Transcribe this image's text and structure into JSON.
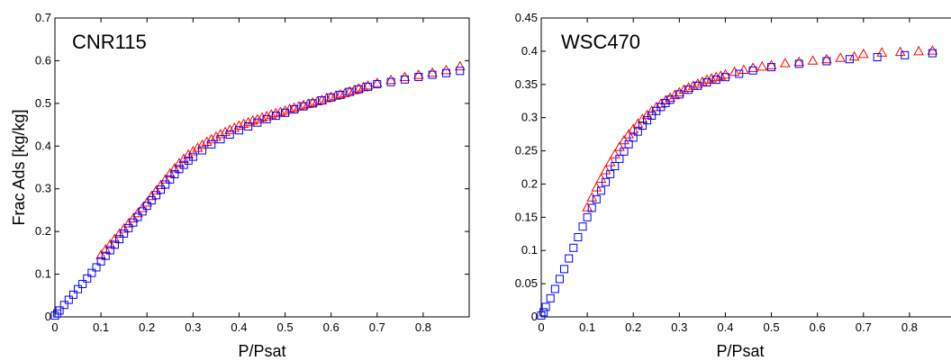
{
  "colors": {
    "series_a": "#ff0000",
    "series_b": "#0000ff",
    "axis": "#000000",
    "background": "#ffffff"
  },
  "chart_data": [
    {
      "type": "scatter",
      "title": "CNR115",
      "xlabel": "P/Psat",
      "ylabel": "Frac Ads [kg/kg]",
      "xlim": [
        0,
        0.9
      ],
      "ylim": [
        0,
        0.7
      ],
      "xticks": [
        0,
        0.1,
        0.2,
        0.3,
        0.4,
        0.5,
        0.6,
        0.7,
        0.8
      ],
      "xtick_labels": [
        "0",
        "0.1",
        "0.2",
        "0.3",
        "0.4",
        "0.5",
        "0.6",
        "0.7",
        "0.8"
      ],
      "yticks": [
        0,
        0.1,
        0.2,
        0.3,
        0.4,
        0.5,
        0.6,
        0.7
      ],
      "ytick_labels": [
        "0",
        "0.1",
        "0.2",
        "0.3",
        "0.4",
        "0.5",
        "0.6",
        "0.7"
      ],
      "grid": false,
      "series": [
        {
          "marker": "triangle",
          "color": "#ff0000",
          "x": [
            0.1,
            0.11,
            0.12,
            0.13,
            0.14,
            0.15,
            0.16,
            0.17,
            0.18,
            0.19,
            0.2,
            0.21,
            0.22,
            0.23,
            0.24,
            0.25,
            0.26,
            0.27,
            0.28,
            0.29,
            0.3,
            0.31,
            0.32,
            0.33,
            0.34,
            0.35,
            0.36,
            0.37,
            0.38,
            0.39,
            0.4,
            0.41,
            0.42,
            0.43,
            0.44,
            0.45,
            0.46,
            0.47,
            0.48,
            0.49,
            0.5,
            0.51,
            0.52,
            0.53,
            0.54,
            0.55,
            0.56,
            0.57,
            0.58,
            0.59,
            0.6,
            0.61,
            0.62,
            0.63,
            0.64,
            0.65,
            0.66,
            0.67,
            0.68,
            0.7,
            0.73,
            0.76,
            0.79,
            0.82,
            0.85,
            0.88
          ],
          "y": [
            0.145,
            0.158,
            0.17,
            0.183,
            0.195,
            0.207,
            0.219,
            0.231,
            0.243,
            0.255,
            0.268,
            0.283,
            0.296,
            0.309,
            0.322,
            0.336,
            0.348,
            0.36,
            0.37,
            0.38,
            0.388,
            0.396,
            0.403,
            0.41,
            0.416,
            0.422,
            0.428,
            0.433,
            0.438,
            0.443,
            0.448,
            0.452,
            0.456,
            0.46,
            0.463,
            0.467,
            0.47,
            0.474,
            0.477,
            0.48,
            0.483,
            0.487,
            0.49,
            0.493,
            0.496,
            0.499,
            0.502,
            0.505,
            0.508,
            0.512,
            0.515,
            0.518,
            0.521,
            0.524,
            0.528,
            0.531,
            0.535,
            0.538,
            0.542,
            0.548,
            0.555,
            0.562,
            0.567,
            0.572,
            0.578,
            0.587
          ]
        },
        {
          "marker": "square",
          "color": "#0000ff",
          "x": [
            0.0,
            0.005,
            0.01,
            0.02,
            0.03,
            0.04,
            0.05,
            0.06,
            0.07,
            0.08,
            0.09,
            0.1,
            0.11,
            0.12,
            0.13,
            0.14,
            0.15,
            0.16,
            0.17,
            0.18,
            0.19,
            0.2,
            0.21,
            0.22,
            0.23,
            0.24,
            0.25,
            0.26,
            0.27,
            0.28,
            0.29,
            0.3,
            0.32,
            0.34,
            0.36,
            0.38,
            0.4,
            0.42,
            0.44,
            0.46,
            0.48,
            0.5,
            0.52,
            0.54,
            0.56,
            0.58,
            0.6,
            0.62,
            0.64,
            0.66,
            0.68,
            0.7,
            0.73,
            0.76,
            0.79,
            0.82,
            0.85,
            0.88
          ],
          "y": [
            0.003,
            0.008,
            0.015,
            0.028,
            0.04,
            0.052,
            0.065,
            0.077,
            0.09,
            0.103,
            0.116,
            0.13,
            0.143,
            0.156,
            0.169,
            0.182,
            0.195,
            0.208,
            0.221,
            0.234,
            0.247,
            0.26,
            0.273,
            0.285,
            0.298,
            0.31,
            0.322,
            0.334,
            0.346,
            0.356,
            0.366,
            0.375,
            0.39,
            0.404,
            0.416,
            0.427,
            0.437,
            0.446,
            0.455,
            0.463,
            0.471,
            0.478,
            0.486,
            0.493,
            0.5,
            0.507,
            0.514,
            0.52,
            0.527,
            0.533,
            0.539,
            0.545,
            0.55,
            0.556,
            0.562,
            0.567,
            0.571,
            0.576
          ]
        }
      ]
    },
    {
      "type": "scatter",
      "title": "WSC470",
      "xlabel": "P/Psat",
      "ylabel": "",
      "xlim": [
        0,
        0.9
      ],
      "ylim": [
        0,
        0.45
      ],
      "xticks": [
        0,
        0.1,
        0.2,
        0.3,
        0.4,
        0.5,
        0.6,
        0.7,
        0.8
      ],
      "xtick_labels": [
        "0",
        "0.1",
        "0.2",
        "0.3",
        "0.4",
        "0.5",
        "0.6",
        "0.7",
        "0.8"
      ],
      "yticks": [
        0,
        0.05,
        0.1,
        0.15,
        0.2,
        0.25,
        0.3,
        0.35,
        0.4,
        0.45
      ],
      "ytick_labels": [
        "0",
        "0.05",
        "0.1",
        "0.15",
        "0.2",
        "0.25",
        "0.3",
        "0.35",
        "0.4",
        "0.45"
      ],
      "grid": false,
      "series": [
        {
          "marker": "triangle",
          "color": "#ff0000",
          "x": [
            0.1,
            0.11,
            0.12,
            0.13,
            0.14,
            0.15,
            0.16,
            0.17,
            0.18,
            0.19,
            0.2,
            0.21,
            0.22,
            0.23,
            0.24,
            0.25,
            0.26,
            0.27,
            0.28,
            0.29,
            0.3,
            0.31,
            0.32,
            0.33,
            0.34,
            0.35,
            0.36,
            0.37,
            0.38,
            0.39,
            0.4,
            0.42,
            0.44,
            0.46,
            0.48,
            0.5,
            0.53,
            0.56,
            0.59,
            0.62,
            0.65,
            0.68,
            0.7,
            0.74,
            0.78,
            0.82,
            0.85
          ],
          "y": [
            0.165,
            0.18,
            0.195,
            0.208,
            0.221,
            0.233,
            0.245,
            0.256,
            0.266,
            0.275,
            0.283,
            0.291,
            0.298,
            0.304,
            0.31,
            0.316,
            0.321,
            0.326,
            0.33,
            0.334,
            0.338,
            0.342,
            0.345,
            0.348,
            0.351,
            0.354,
            0.357,
            0.359,
            0.361,
            0.363,
            0.365,
            0.369,
            0.372,
            0.375,
            0.377,
            0.379,
            0.382,
            0.384,
            0.386,
            0.388,
            0.39,
            0.392,
            0.396,
            0.398,
            0.399,
            0.4,
            0.401
          ]
        },
        {
          "marker": "square",
          "color": "#0000ff",
          "x": [
            0.0,
            0.005,
            0.01,
            0.02,
            0.03,
            0.04,
            0.05,
            0.06,
            0.07,
            0.08,
            0.09,
            0.1,
            0.11,
            0.12,
            0.13,
            0.14,
            0.15,
            0.16,
            0.17,
            0.18,
            0.19,
            0.2,
            0.21,
            0.22,
            0.23,
            0.24,
            0.25,
            0.26,
            0.27,
            0.28,
            0.3,
            0.32,
            0.34,
            0.36,
            0.38,
            0.4,
            0.43,
            0.46,
            0.5,
            0.56,
            0.62,
            0.67,
            0.73,
            0.79,
            0.85
          ],
          "y": [
            0.002,
            0.007,
            0.015,
            0.028,
            0.042,
            0.057,
            0.072,
            0.088,
            0.104,
            0.12,
            0.136,
            0.15,
            0.164,
            0.177,
            0.19,
            0.203,
            0.215,
            0.227,
            0.238,
            0.249,
            0.26,
            0.27,
            0.279,
            0.288,
            0.296,
            0.303,
            0.31,
            0.316,
            0.322,
            0.327,
            0.335,
            0.342,
            0.348,
            0.353,
            0.357,
            0.361,
            0.366,
            0.371,
            0.376,
            0.381,
            0.385,
            0.388,
            0.391,
            0.394,
            0.397
          ]
        }
      ]
    }
  ]
}
